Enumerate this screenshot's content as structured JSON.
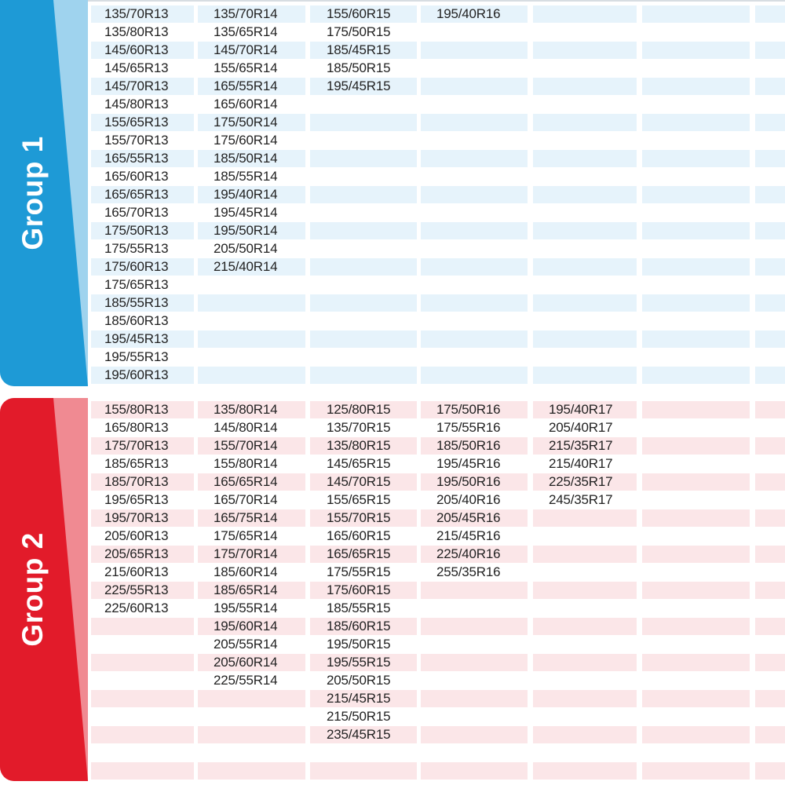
{
  "colors": {
    "group1_tab": "#1e9ad6",
    "group1_tab_light": "#9fd3ee",
    "group1_row_stripe": "#e6f3fb",
    "group2_tab": "#e21b2a",
    "group2_tab_light": "#f08a92",
    "group2_row_stripe": "#fbe6e8"
  },
  "group1": {
    "label": "Group 1",
    "row_count": 21,
    "columns": [
      [
        "135/70R13",
        "135/80R13",
        "145/60R13",
        "145/65R13",
        "145/70R13",
        "145/80R13",
        "155/65R13",
        "155/70R13",
        "165/55R13",
        "165/60R13",
        "165/65R13",
        "165/70R13",
        "175/50R13",
        "175/55R13",
        "175/60R13",
        "175/65R13",
        "185/55R13",
        "185/60R13",
        "195/45R13",
        "195/55R13",
        "195/60R13"
      ],
      [
        "135/70R14",
        "135/65R14",
        "145/70R14",
        "155/65R14",
        "165/55R14",
        "165/60R14",
        "175/50R14",
        "175/60R14",
        "185/50R14",
        "185/55R14",
        "195/40R14",
        "195/45R14",
        "195/50R14",
        "205/50R14",
        "215/40R14"
      ],
      [
        "155/60R15",
        "175/50R15",
        "185/45R15",
        "185/50R15",
        "195/45R15"
      ],
      [
        "195/40R16"
      ],
      [],
      [],
      []
    ]
  },
  "group2": {
    "label": "Group 2",
    "row_count": 21,
    "columns": [
      [
        "155/80R13",
        "165/80R13",
        "175/70R13",
        "185/65R13",
        "185/70R13",
        "195/65R13",
        "195/70R13",
        "205/60R13",
        "205/65R13",
        "215/60R13",
        "225/55R13",
        "225/60R13"
      ],
      [
        "135/80R14",
        "145/80R14",
        "155/70R14",
        "155/80R14",
        "165/65R14",
        "165/70R14",
        "165/75R14",
        "175/65R14",
        "175/70R14",
        "185/60R14",
        "185/65R14",
        "195/55R14",
        "195/60R14",
        "205/55R14",
        "205/60R14",
        "225/55R14"
      ],
      [
        "125/80R15",
        "135/70R15",
        "135/80R15",
        "145/65R15",
        "145/70R15",
        "155/65R15",
        "155/70R15",
        "165/60R15",
        "165/65R15",
        "175/55R15",
        "175/60R15",
        "185/55R15",
        "185/60R15",
        "195/50R15",
        "195/55R15",
        "205/50R15",
        "215/45R15",
        "215/50R15",
        "235/45R15"
      ],
      [
        "175/50R16",
        "175/55R16",
        "185/50R16",
        "195/45R16",
        "195/50R16",
        "205/40R16",
        "205/45R16",
        "215/45R16",
        "225/40R16",
        "255/35R16"
      ],
      [
        "195/40R17",
        "205/40R17",
        "215/35R17",
        "215/40R17",
        "225/35R17",
        "245/35R17"
      ],
      [],
      []
    ]
  }
}
